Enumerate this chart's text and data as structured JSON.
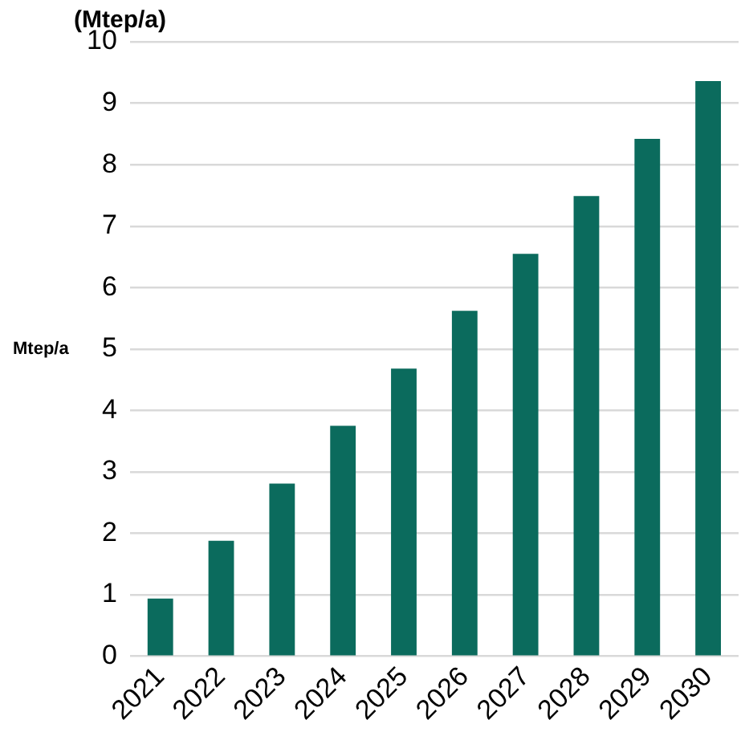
{
  "chart_data": {
    "type": "bar",
    "title": "(Mtep/a)",
    "ylabel": "Mtep/a",
    "categories": [
      "2021",
      "2022",
      "2023",
      "2024",
      "2025",
      "2026",
      "2027",
      "2028",
      "2029",
      "2030"
    ],
    "values": [
      0.94,
      1.88,
      2.81,
      3.75,
      4.68,
      5.62,
      6.55,
      7.49,
      8.42,
      9.36
    ],
    "color": "#0b6b5d",
    "ylim": [
      0,
      10
    ],
    "yticks": [
      0,
      1,
      2,
      3,
      4,
      5,
      6,
      7,
      8,
      9,
      10
    ],
    "grid": "y"
  }
}
